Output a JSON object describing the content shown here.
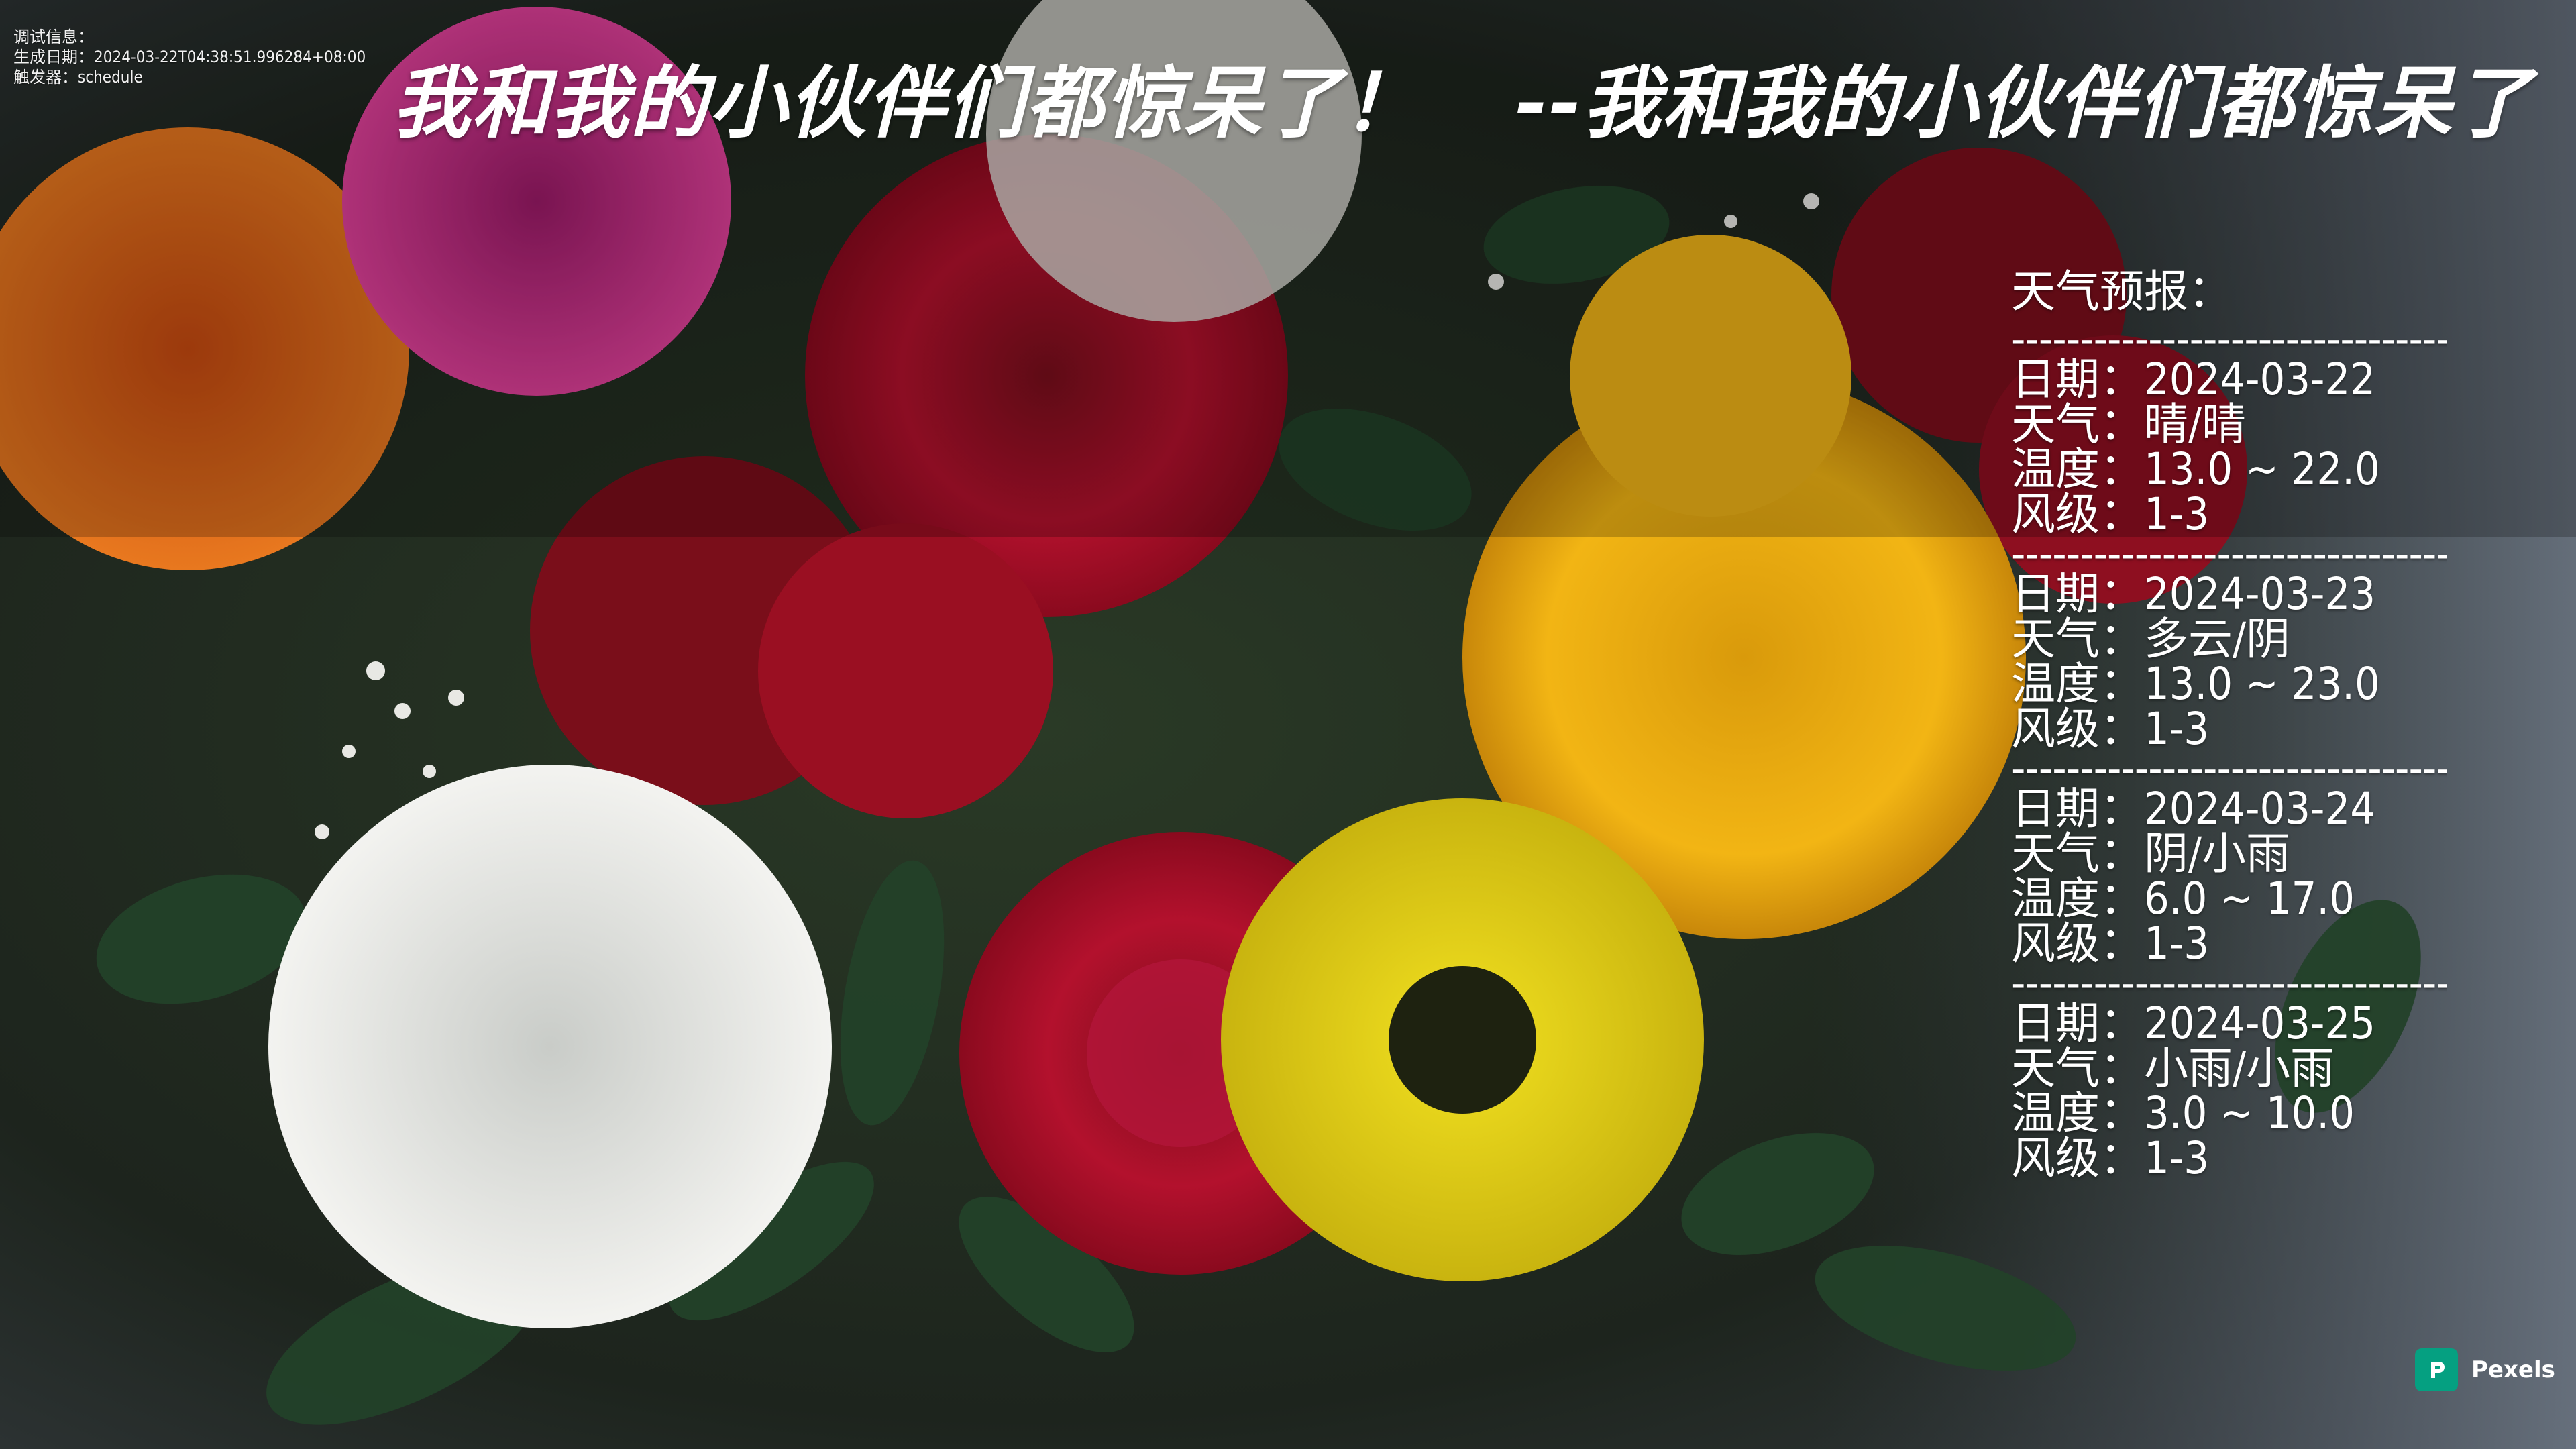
{
  "debug": {
    "label": "调试信息：",
    "generated": "生成日期：2024-03-22T04:38:51.996284+08:00",
    "trigger": "触发器：schedule"
  },
  "title": {
    "main": "我和我的小伙伴们都惊呆了！",
    "author": "--我和我的小伙伴们都惊呆了"
  },
  "weather": {
    "heading": "天气预报：",
    "separator": "----------------------------------------",
    "days": [
      {
        "date": "日期：2024-03-22",
        "weather": "天气：晴/晴",
        "temp": "温度：13.0 ~ 22.0",
        "wind": "风级：1-3"
      },
      {
        "date": "日期：2024-03-23",
        "weather": "天气：多云/阴",
        "temp": "温度：13.0 ~ 23.0",
        "wind": "风级：1-3"
      },
      {
        "date": "日期：2024-03-24",
        "weather": "天气：阴/小雨",
        "temp": "温度：6.0 ~ 17.0",
        "wind": "风级：1-3"
      },
      {
        "date": "日期：2024-03-25",
        "weather": "天气：小雨/小雨",
        "temp": "温度：3.0 ~ 10.0",
        "wind": "风级：1-3"
      }
    ]
  },
  "watermark": {
    "label": "Pexels",
    "icon": "pexels-logo-icon",
    "color": "#05a081"
  }
}
